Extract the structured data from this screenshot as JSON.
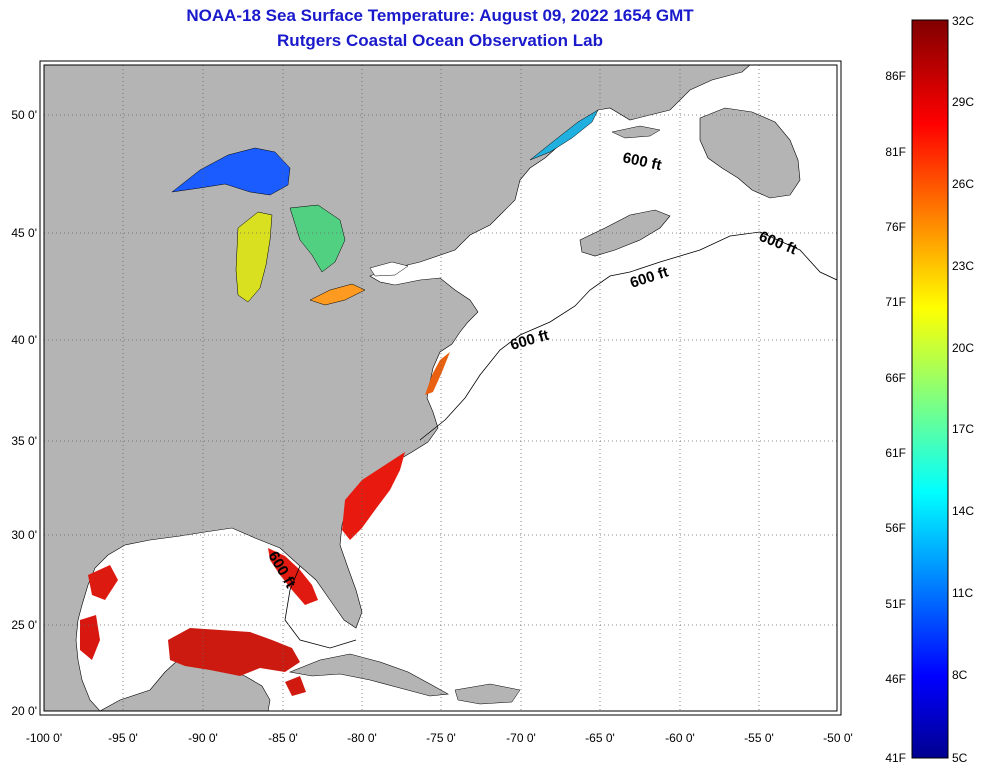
{
  "title": "NOAA-18 Sea Surface Temperature:  August 09, 2022 1654 GMT",
  "subtitle": "Rutgers Coastal Ocean Observation Lab",
  "map": {
    "lon_range": [
      -100,
      -50
    ],
    "lat_range": [
      20,
      52.5
    ],
    "lon_ticks": [
      "-100 0'",
      "-95 0'",
      "-90 0'",
      "-85 0'",
      "-80 0'",
      "-75 0'",
      "-70 0'",
      "-65 0'",
      "-60 0'",
      "-55 0'",
      "-50 0'"
    ],
    "lat_ticks": [
      "50 0'",
      "45 0'",
      "40 0'",
      "35 0'",
      "30 0'",
      "25 0'",
      "20 0'"
    ],
    "contour_labels": [
      "600 ft",
      "600 ft",
      "600 ft",
      "600 ft",
      "600 ft"
    ],
    "colors": {
      "land": "#b4b4b4",
      "ocean_no_data": "#ffffff",
      "grid": "#666666"
    }
  },
  "colorbar": {
    "celsius_labels": [
      "32C",
      "29C",
      "26C",
      "23C",
      "20C",
      "17C",
      "14C",
      "11C",
      "8C",
      "5C"
    ],
    "fahrenheit_labels": [
      "86F",
      "81F",
      "76F",
      "71F",
      "66F",
      "61F",
      "56F",
      "51F",
      "46F",
      "41F"
    ],
    "range_c": [
      5,
      32
    ]
  }
}
